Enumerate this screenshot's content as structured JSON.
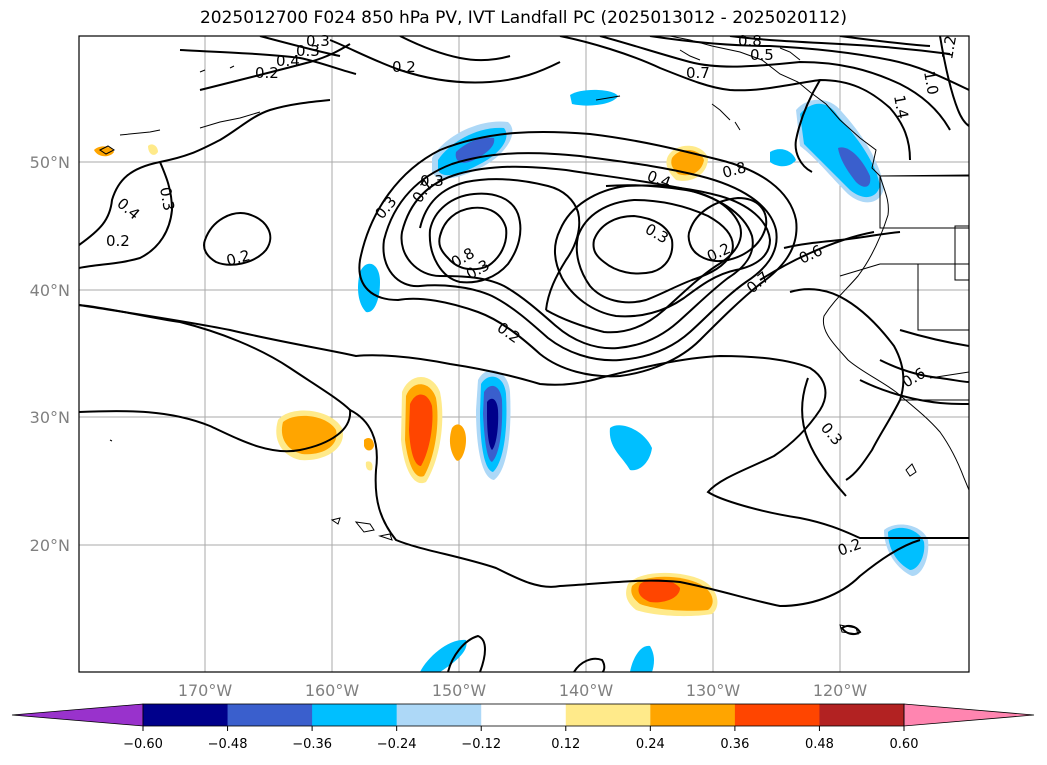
{
  "title": "2025012700 F024 850 hPa PV, IVT Landfall PC (2025013012 - 2025020112)",
  "lat_labels": [
    "50°N",
    "40°N",
    "30°N",
    "20°N"
  ],
  "lon_labels": [
    "170°W",
    "160°W",
    "150°W",
    "140°W",
    "130°W",
    "120°W"
  ],
  "contour_labels": [
    "0.2",
    "0.4",
    "0.3",
    "0.3",
    "0.2",
    "0.4",
    "0.3",
    "0.2",
    "0.3",
    "0.7",
    "0.8",
    "0.3",
    "0.2",
    "0.4",
    "0.3",
    "0.2",
    "0.8",
    "0.7",
    "0.5",
    "0.8",
    "1.0",
    "1.2",
    "1.4",
    "0.7",
    "0.6",
    "0.6",
    "0.3",
    "0.2",
    "0.2",
    "0.3"
  ],
  "colorbar": {
    "ticks": [
      "−0.60",
      "−0.48",
      "−0.36",
      "−0.24",
      "−0.12",
      "0.12",
      "0.24",
      "0.36",
      "0.48",
      "0.60"
    ],
    "colors": [
      "#9932cc",
      "#00008b",
      "#3a5fcd",
      "#00bfff",
      "#add8f7",
      "#ffffff",
      "#ffea8a",
      "#ffa500",
      "#ff4500",
      "#b22222",
      "#ff85b0"
    ]
  }
}
